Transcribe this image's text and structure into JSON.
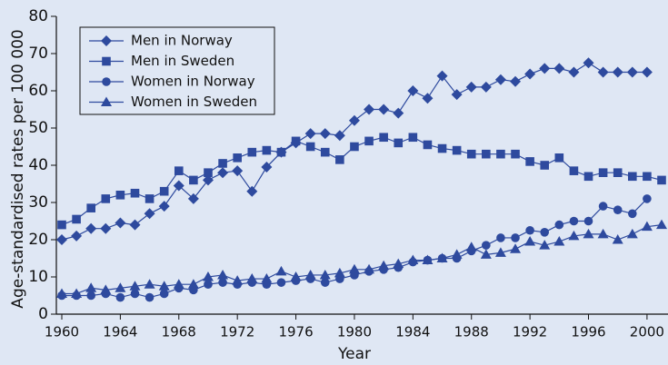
{
  "chart_data": {
    "type": "line",
    "xlabel": "Year",
    "ylabel": "Age-standardised rates per 100 000",
    "xlim": [
      1960,
      2001
    ],
    "xticks": [
      1960,
      1964,
      1968,
      1972,
      1976,
      1980,
      1984,
      1988,
      1992,
      1996,
      2000
    ],
    "ylim": [
      0,
      80
    ],
    "yticks": [
      0,
      10,
      20,
      30,
      40,
      50,
      60,
      70,
      80
    ],
    "legend": "upper left",
    "series": [
      {
        "name": "Men in Norway",
        "color": "#2e4a9e",
        "marker": "diamond",
        "x": [
          1960,
          1961,
          1962,
          1963,
          1964,
          1965,
          1966,
          1967,
          1968,
          1969,
          1970,
          1971,
          1972,
          1973,
          1974,
          1975,
          1976,
          1977,
          1978,
          1979,
          1980,
          1981,
          1982,
          1983,
          1984,
          1985,
          1986,
          1987,
          1988,
          1989,
          1990,
          1991,
          1992,
          1993,
          1994,
          1995,
          1996,
          1997,
          1998,
          1999,
          2000
        ],
        "values": [
          20,
          21,
          23,
          23,
          24.5,
          24,
          27,
          29,
          34.5,
          31,
          36,
          38,
          38.5,
          33,
          39.5,
          43.5,
          46,
          48.5,
          48.5,
          48,
          52,
          55,
          55,
          54,
          60,
          58,
          64,
          59,
          61,
          61,
          63,
          62.5,
          64.5,
          66,
          66,
          65,
          67.5,
          65,
          65,
          65,
          65
        ]
      },
      {
        "name": "Men in Sweden",
        "color": "#2e4a9e",
        "marker": "square",
        "x": [
          1960,
          1961,
          1962,
          1963,
          1964,
          1965,
          1966,
          1967,
          1968,
          1969,
          1970,
          1971,
          1972,
          1973,
          1974,
          1975,
          1976,
          1977,
          1978,
          1979,
          1980,
          1981,
          1982,
          1983,
          1984,
          1985,
          1986,
          1987,
          1988,
          1989,
          1990,
          1991,
          1992,
          1993,
          1994,
          1995,
          1996,
          1997,
          1998,
          1999,
          2000,
          2001
        ],
        "values": [
          24,
          25.5,
          28.5,
          31,
          32,
          32.5,
          31,
          33,
          38.5,
          36,
          38,
          40.5,
          42,
          43.5,
          44,
          43.5,
          46.5,
          45,
          43.5,
          41.5,
          45,
          46.5,
          47.5,
          46,
          47.5,
          45.5,
          44.5,
          44,
          43,
          43,
          43,
          43,
          41,
          40,
          42,
          38.5,
          37,
          38,
          38,
          37,
          37,
          36
        ]
      },
      {
        "name": "Women in Norway",
        "color": "#2e4a9e",
        "marker": "circle",
        "x": [
          1960,
          1961,
          1962,
          1963,
          1964,
          1965,
          1966,
          1967,
          1968,
          1969,
          1970,
          1971,
          1972,
          1973,
          1974,
          1975,
          1976,
          1977,
          1978,
          1979,
          1980,
          1981,
          1982,
          1983,
          1984,
          1985,
          1986,
          1987,
          1988,
          1989,
          1990,
          1991,
          1992,
          1993,
          1994,
          1995,
          1996,
          1997,
          1998,
          1999,
          2000
        ],
        "values": [
          5,
          5,
          5,
          5.5,
          4.5,
          5.5,
          4.5,
          5.5,
          7,
          6.5,
          8,
          8.5,
          8,
          8.5,
          8,
          8.5,
          9,
          9.5,
          8.5,
          9.5,
          10.5,
          11.5,
          12,
          12.5,
          14,
          14.5,
          15,
          15,
          17,
          18.5,
          20.5,
          20.5,
          22.5,
          22,
          24,
          25,
          25,
          29,
          28,
          27,
          31
        ]
      },
      {
        "name": "Women in Sweden",
        "color": "#2e4a9e",
        "marker": "triangle",
        "x": [
          1960,
          1961,
          1962,
          1963,
          1964,
          1965,
          1966,
          1967,
          1968,
          1969,
          1970,
          1971,
          1972,
          1973,
          1974,
          1975,
          1976,
          1977,
          1978,
          1979,
          1980,
          1981,
          1982,
          1983,
          1984,
          1985,
          1986,
          1987,
          1988,
          1989,
          1990,
          1991,
          1992,
          1993,
          1994,
          1995,
          1996,
          1997,
          1998,
          1999,
          2000,
          2001
        ],
        "values": [
          5.5,
          5.5,
          7,
          6.5,
          7,
          7.5,
          8,
          7.5,
          8,
          8,
          10,
          10.5,
          9,
          9.5,
          9.5,
          11.5,
          10,
          10.5,
          10.5,
          11,
          12,
          12,
          13,
          13.5,
          14.5,
          14.5,
          15,
          16,
          18,
          16,
          16.5,
          17.5,
          19.5,
          18.5,
          19.5,
          21,
          21.5,
          21.5,
          20,
          21.5,
          23.5,
          24
        ]
      }
    ]
  }
}
